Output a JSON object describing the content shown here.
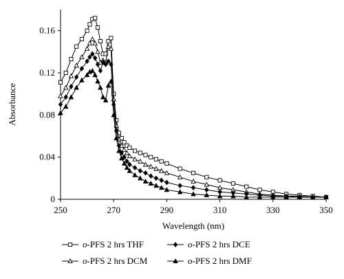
{
  "chart_data": {
    "type": "line",
    "xlabel": "Wavelength (nm)",
    "ylabel": "Absorbance",
    "xlim": [
      250,
      350
    ],
    "ylim": [
      0,
      0.18
    ],
    "xticks": [
      "250",
      "270",
      "290",
      "310",
      "330",
      "350"
    ],
    "yticks": [
      "0",
      "0.04",
      "0.08",
      "0.12",
      "0.16"
    ],
    "grid": false,
    "legend_position": "bottom",
    "x": [
      250,
      252,
      254,
      256,
      258,
      260,
      261,
      262,
      263,
      264,
      265,
      266,
      267,
      268,
      269,
      270,
      271,
      272,
      273,
      274,
      275,
      276,
      278,
      280,
      282,
      284,
      286,
      288,
      290,
      295,
      300,
      305,
      310,
      315,
      320,
      325,
      330,
      335,
      340,
      345,
      350
    ],
    "series": [
      {
        "name_prefix": "o",
        "name_rest": "-PFS 2 hrs THF",
        "marker": "square-open",
        "values": [
          0.111,
          0.12,
          0.133,
          0.145,
          0.152,
          0.16,
          0.166,
          0.171,
          0.172,
          0.163,
          0.15,
          0.138,
          0.138,
          0.15,
          0.153,
          0.1,
          0.075,
          0.063,
          0.058,
          0.054,
          0.051,
          0.049,
          0.046,
          0.044,
          0.042,
          0.04,
          0.038,
          0.036,
          0.034,
          0.029,
          0.025,
          0.021,
          0.018,
          0.015,
          0.012,
          0.009,
          0.007,
          0.005,
          0.004,
          0.003,
          0.002
        ]
      },
      {
        "name_prefix": "o",
        "name_rest": "-PFS 2 hrs DCM",
        "marker": "triangle-open",
        "values": [
          0.098,
          0.106,
          0.117,
          0.127,
          0.135,
          0.143,
          0.148,
          0.152,
          0.148,
          0.14,
          0.13,
          0.132,
          0.13,
          0.145,
          0.143,
          0.095,
          0.07,
          0.057,
          0.051,
          0.047,
          0.044,
          0.041,
          0.038,
          0.036,
          0.033,
          0.031,
          0.029,
          0.027,
          0.025,
          0.021,
          0.017,
          0.014,
          0.011,
          0.009,
          0.007,
          0.005,
          0.004,
          0.003,
          0.003,
          0.002,
          0.002
        ]
      },
      {
        "name_prefix": "o",
        "name_rest": "-PFS 2 hrs DCE",
        "marker": "diamond-filled",
        "values": [
          0.09,
          0.097,
          0.107,
          0.116,
          0.124,
          0.131,
          0.135,
          0.138,
          0.134,
          0.128,
          0.122,
          0.13,
          0.128,
          0.131,
          0.128,
          0.09,
          0.065,
          0.051,
          0.044,
          0.04,
          0.036,
          0.033,
          0.03,
          0.027,
          0.025,
          0.022,
          0.02,
          0.018,
          0.016,
          0.013,
          0.011,
          0.009,
          0.007,
          0.006,
          0.005,
          0.004,
          0.003,
          0.003,
          0.002,
          0.002,
          0.002
        ]
      },
      {
        "name_prefix": "o",
        "name_rest": "-PFS 2 hrs DMF",
        "marker": "triangle-filled",
        "values": [
          0.082,
          0.088,
          0.097,
          0.106,
          0.113,
          0.118,
          0.121,
          0.122,
          0.118,
          0.112,
          0.106,
          0.097,
          0.094,
          0.108,
          0.112,
          0.08,
          0.058,
          0.046,
          0.039,
          0.034,
          0.03,
          0.027,
          0.023,
          0.02,
          0.017,
          0.015,
          0.013,
          0.011,
          0.009,
          0.007,
          0.005,
          0.004,
          0.003,
          0.003,
          0.002,
          0.002,
          0.002,
          0.002,
          0.002,
          0.002,
          0.002
        ]
      }
    ]
  }
}
